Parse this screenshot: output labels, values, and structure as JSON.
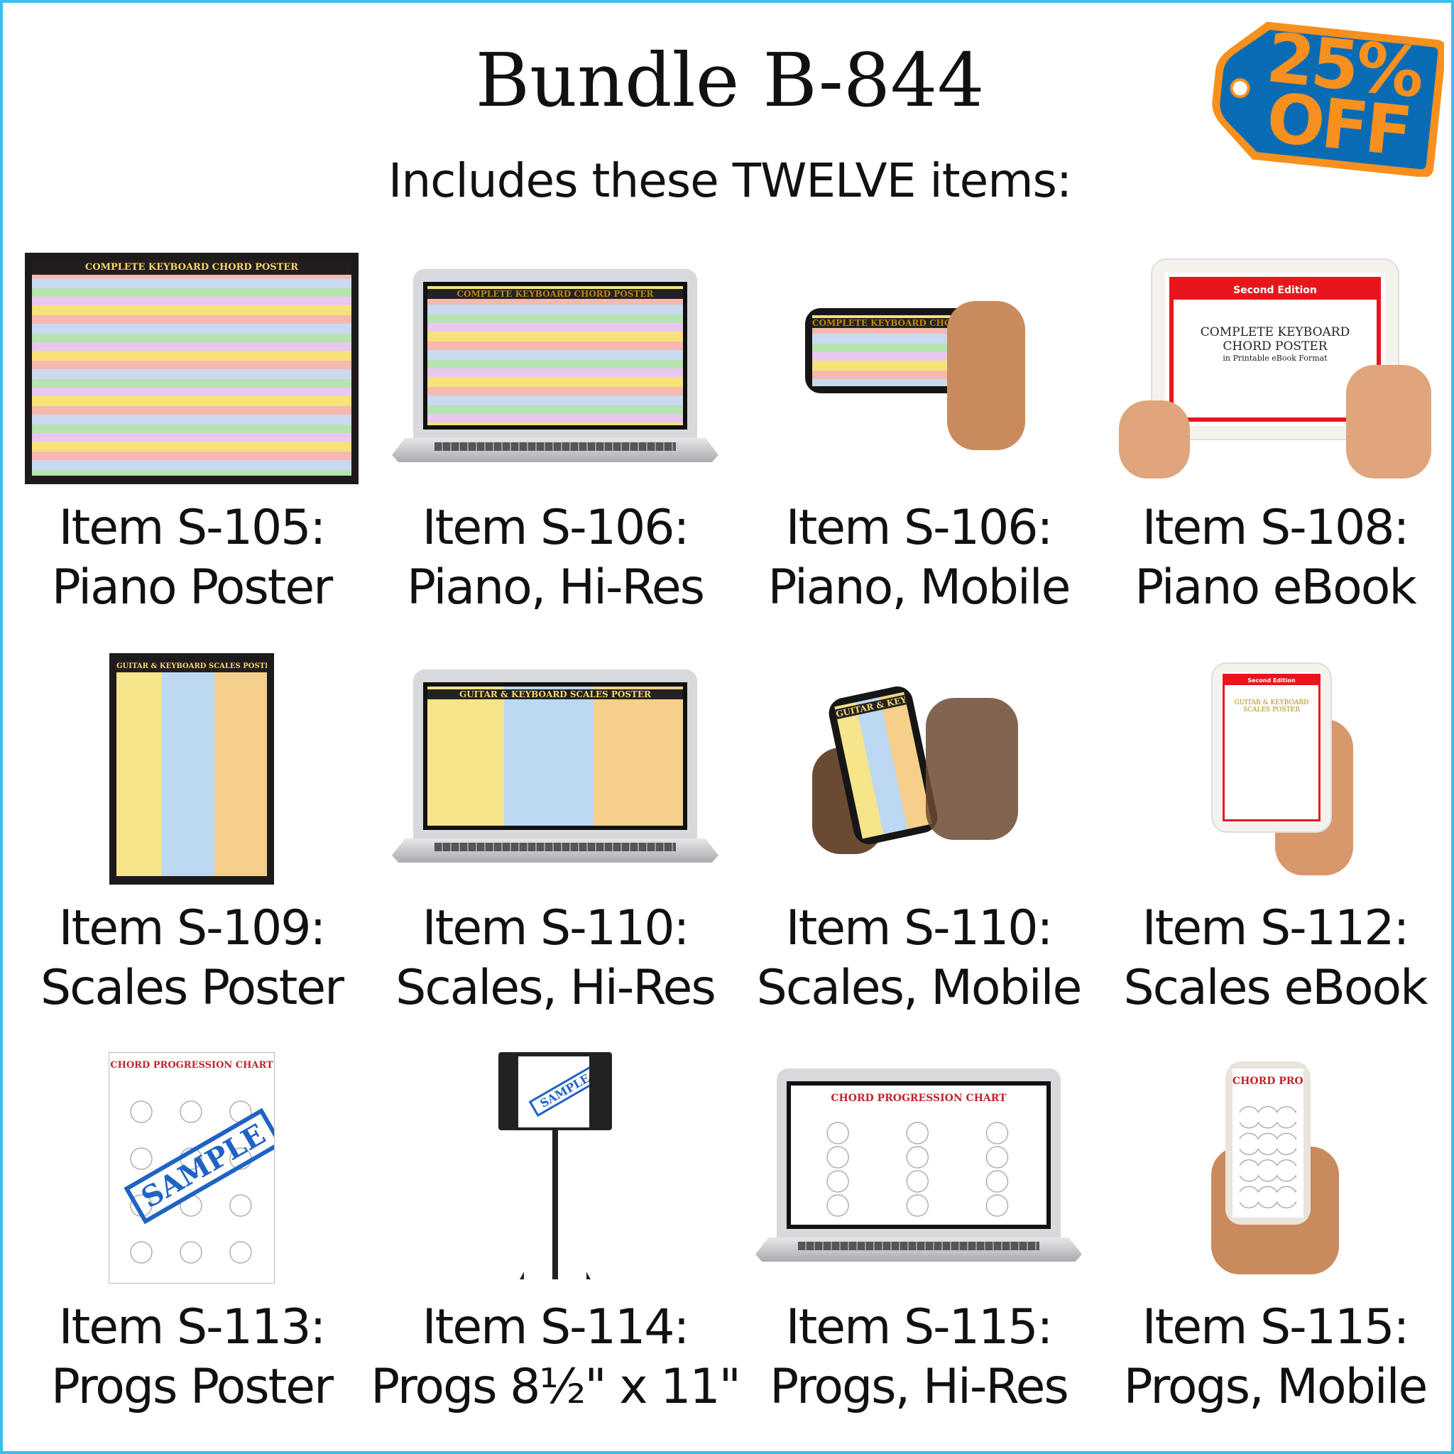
{
  "header": {
    "title": "Bundle B-844",
    "subtitle": "Includes these TWELVE items:"
  },
  "badge": {
    "line1": "25%",
    "line2": "OFF",
    "colors": {
      "fill": "#0a6bb5",
      "accent": "#f7901e"
    }
  },
  "screen_text": {
    "chord_poster": "COMPLETE KEYBOARD CHORD POSTER",
    "scales_poster": "GUITAR & KEYBOARD SCALES POSTER",
    "progs_chart": "CHORD PROGRESSION CHART",
    "second_edition": "Second Edition",
    "ebook_title_1": "COMPLETE KEYBOARD",
    "ebook_title_2": "CHORD POSTER",
    "ebook_subtitle": "in Printable eBook Format",
    "scales_ebook_title": "GUITAR & KEYBOARD SCALES POSTER",
    "sample_stamp": "SAMPLE"
  },
  "items": [
    {
      "code": "Item S-105:",
      "name": "Piano Poster",
      "image": "chord-poster"
    },
    {
      "code": "Item S-106:",
      "name": "Piano, Hi-Res",
      "image": "chord-laptop"
    },
    {
      "code": "Item S-106:",
      "name": "Piano, Mobile",
      "image": "chord-phone"
    },
    {
      "code": "Item S-108:",
      "name": "Piano eBook",
      "image": "chord-tablet"
    },
    {
      "code": "Item S-109:",
      "name": "Scales Poster",
      "image": "scales-poster"
    },
    {
      "code": "Item S-110:",
      "name": "Scales, Hi-Res",
      "image": "scales-laptop"
    },
    {
      "code": "Item S-110:",
      "name": "Scales, Mobile",
      "image": "scales-phone"
    },
    {
      "code": "Item S-112:",
      "name": "Scales eBook",
      "image": "scales-tablet"
    },
    {
      "code": "Item S-113:",
      "name": "Progs Poster",
      "image": "progs-poster"
    },
    {
      "code": "Item S-114:",
      "name": "Progs 8½\" x 11\"",
      "image": "progs-stand"
    },
    {
      "code": "Item S-115:",
      "name": "Progs, Hi-Res",
      "image": "progs-laptop"
    },
    {
      "code": "Item S-115:",
      "name": "Progs, Mobile",
      "image": "progs-phone"
    }
  ]
}
